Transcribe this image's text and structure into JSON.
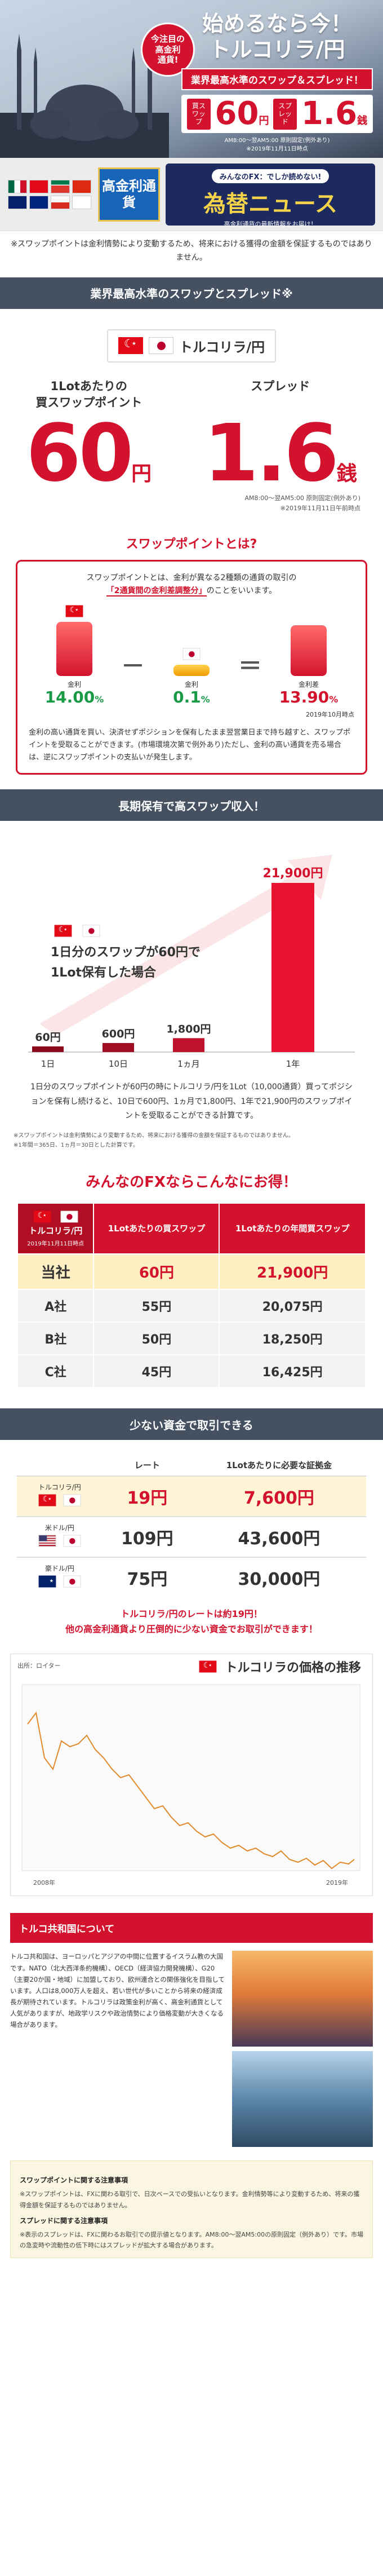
{
  "hero": {
    "badge": [
      "今注目の",
      "高金利",
      "通貨!"
    ],
    "headline_1": "始めるなら今！",
    "headline_2": "トルコリラ/円",
    "ribbon": "業界最高水準のスワップ＆スプレッド！",
    "swap_label": "買スワップ",
    "swap_value": "60",
    "swap_unit": "円",
    "spread_label": "スプレッド",
    "spread_value": "1.6",
    "spread_unit": "銭",
    "note_1": "AM8:00～翌AM5:00",
    "note_2": "原則固定(例外あり)",
    "note_3": "※2019年11月11日時点"
  },
  "banner": {
    "high_rate": "高金利通貨",
    "pill": "みんなのFX：でしか読めない!",
    "news": "為替ニュース",
    "sub": "高金利通貨の最新情報をお届け！"
  },
  "notice": "※スワップポイントは金利情勢により変動するため、将来における獲得の金額を保証するものではありません。",
  "sections": {
    "s1": "業界最高水準のスワップとスプレッド※",
    "s2": "長期保有で高スワップ収入！",
    "s3": "少ない資金で取引できる"
  },
  "pair_name": "トルコリラ/円",
  "swap": {
    "label": [
      "1Lotあたりの",
      "買スワップポイント"
    ],
    "value": "60",
    "unit": "円"
  },
  "spread": {
    "label": "スプレッド",
    "value": "1.6",
    "unit": "銭"
  },
  "spread_note_1": "AM8:00～翌AM5:00 原則固定(例外あり)",
  "spread_note_2": "※2019年11月11日午前時点",
  "what": {
    "title": "スワップポイントとは?",
    "desc_1": "スワップポイントとは、金利が異なる2種類の通貨の取引の",
    "desc_hl": "「2通貨間の金利差調整分」",
    "desc_2": "のことをいいます。",
    "high_name": "金利",
    "high_rate": "14.00",
    "low_name": "金利",
    "low_rate": "0.1",
    "minus": "－",
    "equals": "＝",
    "result_name": "金利差",
    "result_rate": "13.90",
    "pct": "%",
    "date": "2019年10月時点",
    "expl": "金利の高い通貨を買い、決済せずポジションを保有したまま翌営業日まで持ち越すと、スワップポイントを受取ることができます。(市場環境次第で例外あり)ただし、金利の高い通貨を売る場合は、逆にスワップポイントの支払いが発生します。"
  },
  "hold": {
    "info_1": "1日分のスワップが60円で",
    "info_2": "1Lot保有した場合",
    "caption": "1日分のスワップポイントが60円の時にトルコリラ/円を1Lot（10,000通貨）買ってポジションを保有し続けると、10日で600円、1ヵ月で1,800円、1年で21,900円のスワップポイントを受取ることができる計算です。",
    "notes": [
      "※スワップポイントは金利情勢により変動するため、将来における獲得の金額を保証するものではありません。",
      "※1年間＝365日、1ヵ月＝30日とした計算です。"
    ]
  },
  "chart_data": {
    "type": "bar",
    "categories": [
      "1日",
      "10日",
      "1ヵ月",
      "1年"
    ],
    "values": [
      60,
      600,
      1800,
      21900
    ],
    "value_labels": [
      "60円",
      "600円",
      "1,800円",
      "21,900円"
    ],
    "title": "",
    "xlabel": "",
    "ylabel": ""
  },
  "compare": {
    "title": "みんなのFXならこんなにお得！",
    "head_pair": "トルコリラ/円",
    "head_date": "2019年11月11日時点",
    "head_swap": "1Lotあたりの買スワップ",
    "head_year": "1Lotあたりの年間買スワップ",
    "rows": [
      {
        "name": "当社",
        "swap": "60円",
        "year": "21,900円"
      },
      {
        "name": "A社",
        "swap": "55円",
        "year": "20,075円"
      },
      {
        "name": "B社",
        "swap": "50円",
        "year": "18,250円"
      },
      {
        "name": "C社",
        "swap": "45円",
        "year": "16,425円"
      }
    ]
  },
  "capital": {
    "head_rate": "レート",
    "head_margin": "1Lotあたりに必要な証拠金",
    "rows": [
      {
        "pair": "トルコリラ/円",
        "rate": "19円",
        "margin": "7,600円"
      },
      {
        "pair": "米ドル/円",
        "rate": "109円",
        "margin": "43,600円"
      },
      {
        "pair": "豪ドル/円",
        "rate": "75円",
        "margin": "30,000円"
      }
    ],
    "msg_1": "トルコリラ/円のレートは約19円！",
    "msg_2": "他の高金利通貨より圧倒的に少ない資金でお取引ができます！"
  },
  "price": {
    "title": "トルコリラの価格の推移",
    "source": "出所：ロイター",
    "x_start": "2008年",
    "x_end": "2019年"
  },
  "about": {
    "title": "トルコ共和国について",
    "text": "トルコ共和国は、ヨーロッパとアジアの中間に位置するイスラム教の大国です。NATO（北大西洋条約機構）、OECD（経済協力開発機構）、G20（主要20か国・地域）に加盟しており、欧州連合との関係強化を目指しています。人口は8,000万人を超え、若い世代が多いことから将来の経済成長が期待されています。トルコリラは政策金利が高く、高金利通貨として人気がありますが、地政学リスクや政治情勢により価格変動が大きくなる場合があります。",
    "footer_h1": "スワップポイントに関する注意事項",
    "footer_t1": "※スワップポイントは、FXに関わる取引で、日次ベースでの受払いとなります。金利情勢等により変動するため、将来の獲得金額を保証するものではありません。",
    "footer_h2": "スプレッドに関する注意事項",
    "footer_t2": "※表示のスプレッドは、FXに関わるお取引での提示値となります。AM8:00～翌AM5:00の原則固定（例外あり）です。市場の急変時や流動性の低下時にはスプレッドが拡大する場合があります。"
  }
}
